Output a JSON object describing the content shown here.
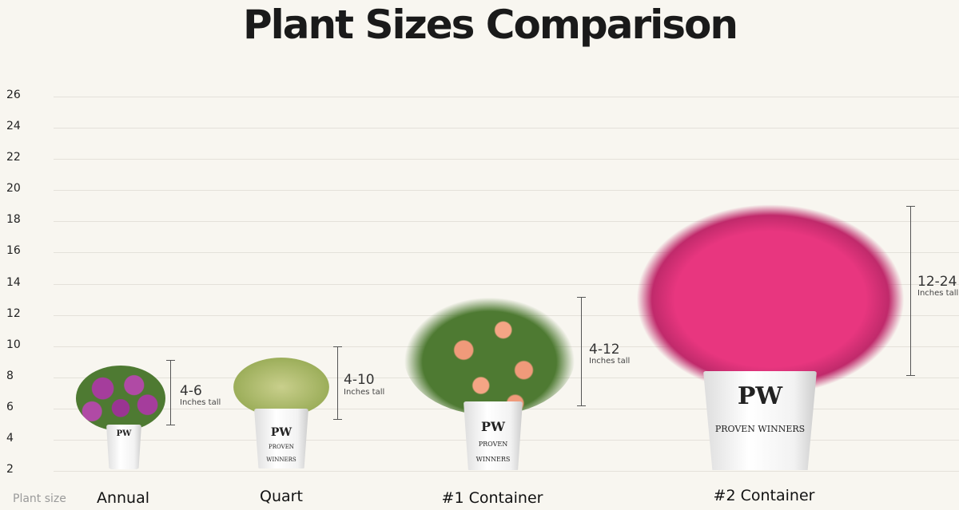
{
  "title": "Plant Sizes Comparison",
  "chart_data": {
    "type": "range",
    "title": "Plant Sizes Comparison",
    "xlabel": "Plant size",
    "ylabel": "",
    "yticks": [
      2,
      4,
      6,
      8,
      10,
      12,
      14,
      16,
      18,
      20,
      22,
      24,
      26
    ],
    "ylim": [
      2,
      26
    ],
    "grid": true,
    "categories": [
      "Annual",
      "Quart",
      "#1 Container",
      "#2 Container"
    ],
    "ranges": [
      {
        "min": 4,
        "max": 6,
        "label": "4-6",
        "unit": "Inches tall"
      },
      {
        "min": 4,
        "max": 10,
        "label": "4-10",
        "unit": "Inches tall"
      },
      {
        "min": 4,
        "max": 12,
        "label": "4-12",
        "unit": "Inches tall"
      },
      {
        "min": 12,
        "max": 24,
        "label": "12-24",
        "unit": "Inches tall"
      }
    ]
  },
  "brand": {
    "logo": "PW",
    "name": "PROVEN WINNERS"
  },
  "colors": {
    "background": "#f8f6f0",
    "annual_flower": "#a53d9c",
    "quart_foliage": "#b7c27a",
    "rose": "#f09a7a",
    "weigela": "#e8367f",
    "leaf": "#4e7a32"
  }
}
